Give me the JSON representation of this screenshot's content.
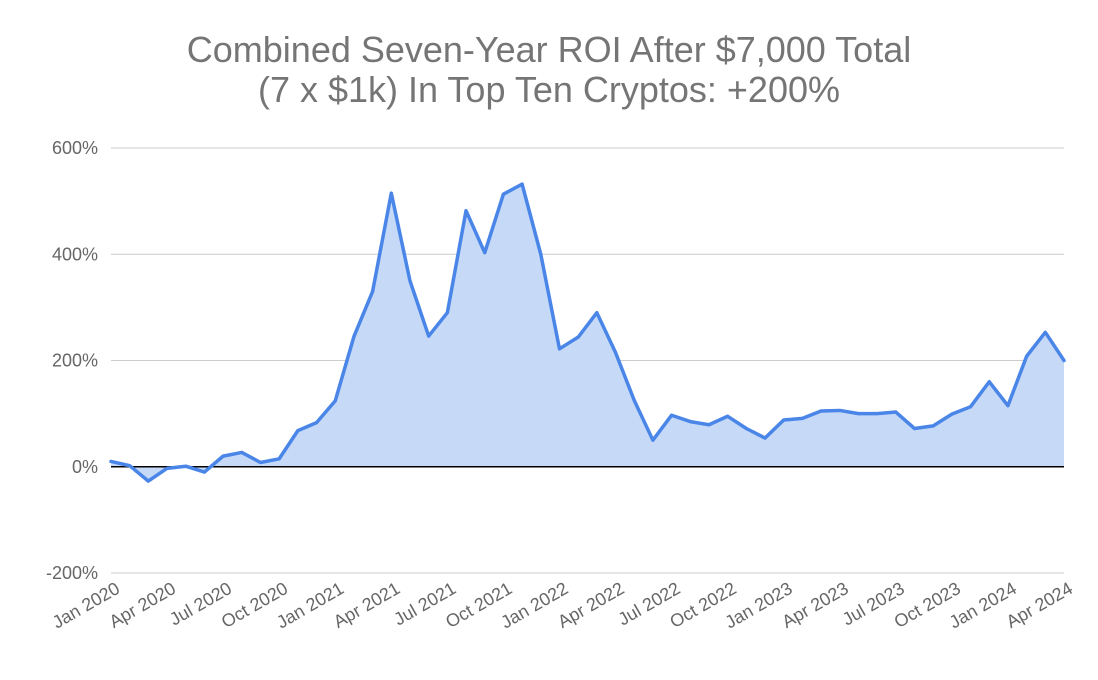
{
  "chart_data": {
    "type": "area",
    "title_lines": [
      "Combined Seven-Year ROI After $7,000 Total",
      "(7 x $1k) In Top Ten Cryptos: +200%"
    ],
    "xlabel": "",
    "ylabel": "",
    "ylim": [
      -200,
      600
    ],
    "y_ticks": [
      {
        "value": 600,
        "label": "600%"
      },
      {
        "value": 400,
        "label": "400%"
      },
      {
        "value": 200,
        "label": "200%"
      },
      {
        "value": 0,
        "label": "0%"
      },
      {
        "value": -200,
        "label": "-200%"
      }
    ],
    "x_ticks": [
      {
        "index": 0,
        "label": "Jan 2020"
      },
      {
        "index": 3,
        "label": "Apr 2020"
      },
      {
        "index": 6,
        "label": "Jul 2020"
      },
      {
        "index": 9,
        "label": "Oct 2020"
      },
      {
        "index": 12,
        "label": "Jan 2021"
      },
      {
        "index": 15,
        "label": "Apr 2021"
      },
      {
        "index": 18,
        "label": "Jul 2021"
      },
      {
        "index": 21,
        "label": "Oct 2021"
      },
      {
        "index": 24,
        "label": "Jan 2022"
      },
      {
        "index": 27,
        "label": "Apr 2022"
      },
      {
        "index": 30,
        "label": "Jul 2022"
      },
      {
        "index": 33,
        "label": "Oct 2022"
      },
      {
        "index": 36,
        "label": "Jan 2023"
      },
      {
        "index": 39,
        "label": "Apr 2023"
      },
      {
        "index": 42,
        "label": "Jul 2023"
      },
      {
        "index": 45,
        "label": "Oct 2023"
      },
      {
        "index": 48,
        "label": "Jan 2024"
      },
      {
        "index": 51,
        "label": "Apr 2024"
      }
    ],
    "x": [
      "Jan 2020",
      "Feb 2020",
      "Mar 2020",
      "Apr 2020",
      "May 2020",
      "Jun 2020",
      "Jul 2020",
      "Aug 2020",
      "Sep 2020",
      "Oct 2020",
      "Nov 2020",
      "Dec 2020",
      "Jan 2021",
      "Feb 2021",
      "Mar 2021",
      "Apr 2021",
      "May 2021",
      "Jun 2021",
      "Jul 2021",
      "Aug 2021",
      "Sep 2021",
      "Oct 2021",
      "Nov 2021",
      "Dec 2021",
      "Jan 2022",
      "Feb 2022",
      "Mar 2022",
      "Apr 2022",
      "May 2022",
      "Jun 2022",
      "Jul 2022",
      "Aug 2022",
      "Sep 2022",
      "Oct 2022",
      "Nov 2022",
      "Dec 2022",
      "Jan 2023",
      "Feb 2023",
      "Mar 2023",
      "Apr 2023",
      "May 2023",
      "Jun 2023",
      "Jul 2023",
      "Aug 2023",
      "Sep 2023",
      "Oct 2023",
      "Nov 2023",
      "Dec 2023",
      "Jan 2024",
      "Feb 2024",
      "Mar 2024",
      "Apr 2024"
    ],
    "series": [
      {
        "values": [
          10,
          2,
          -27,
          -3,
          1,
          -10,
          20,
          27,
          8,
          15,
          68,
          83,
          124,
          245,
          330,
          515,
          350,
          246,
          290,
          482,
          403,
          513,
          532,
          400,
          222,
          244,
          290,
          215,
          125,
          50,
          97,
          85,
          79,
          95,
          72,
          54,
          88,
          91,
          105,
          106,
          100,
          100,
          103,
          72,
          77,
          99,
          113,
          160,
          115,
          208,
          253,
          200
        ],
        "color": "#4a85e8",
        "fill_color": "#c6daf8"
      }
    ],
    "grid": true,
    "legend": "none",
    "zero_line_color": "#000000",
    "grid_color": "#cccccc"
  }
}
